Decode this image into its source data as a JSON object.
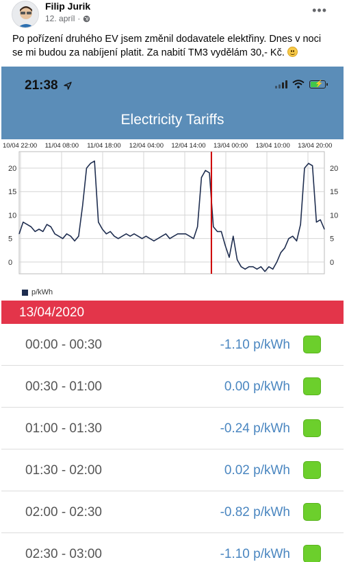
{
  "post": {
    "author": "Filip Jurik",
    "date": "12. apríl",
    "privacy_icon": "globe-icon",
    "more_icon": "ellipsis-icon",
    "text": "Po pořízení druhého EV jsem změnil dodavatele elektřiny. Dnes v noci se mi budou za nabíjení platit. Za nabití TM3 vydělám 30,- Kč.",
    "emoji": "smiley-emoji"
  },
  "status_bar": {
    "time": "21:38",
    "icons": [
      "location-arrow-icon",
      "signal-icon",
      "wifi-icon",
      "battery-charging-icon"
    ]
  },
  "app": {
    "title": "Electricity Tariffs",
    "accent_color": "#5b8db8",
    "date_bar_color": "#e3354a",
    "price_color": "#4a86c0",
    "indicator_color": "#6ccf2c"
  },
  "chart_data": {
    "type": "line",
    "title": "",
    "x_ticks": [
      "10/04 22:00",
      "11/04 08:00",
      "11/04 18:00",
      "12/04 04:00",
      "12/04 14:00",
      "13/04 00:00",
      "13/04 10:00",
      "13/04 20:00"
    ],
    "y_ticks": [
      20,
      15,
      10,
      5,
      0
    ],
    "ylim": [
      -2.5,
      23.5
    ],
    "grid": true,
    "legend": "bottom-left",
    "series": [
      {
        "name": "p/kWh",
        "color": "#1e2d4f",
        "x": [
          0,
          1,
          2,
          3,
          4,
          5,
          6,
          7,
          8,
          9,
          10,
          11,
          12,
          13,
          14,
          15,
          16,
          17,
          18,
          19,
          20,
          21,
          22,
          23,
          24,
          25,
          26,
          27,
          28,
          29,
          30,
          31,
          32,
          33,
          34,
          35,
          36,
          37,
          38,
          39,
          40,
          41,
          42,
          43,
          44,
          45,
          46,
          47,
          48,
          49,
          50,
          51,
          52,
          53,
          54,
          55,
          56,
          57,
          58,
          59,
          60,
          61,
          62,
          63,
          64,
          65,
          66,
          67,
          68,
          69,
          70,
          71,
          72,
          73,
          74,
          75,
          76,
          77
        ],
        "values": [
          6.0,
          8.5,
          8.0,
          7.5,
          6.5,
          7.0,
          6.5,
          8.0,
          7.5,
          6.0,
          5.5,
          5.0,
          6.0,
          5.5,
          4.5,
          5.5,
          12.0,
          20.0,
          21.0,
          21.5,
          8.5,
          7.0,
          6.0,
          6.5,
          5.5,
          5.0,
          5.5,
          6.0,
          5.5,
          6.0,
          5.5,
          5.0,
          5.5,
          5.0,
          4.5,
          5.0,
          5.5,
          6.0,
          5.0,
          5.5,
          6.0,
          6.0,
          6.0,
          5.5,
          5.0,
          7.5,
          18.0,
          19.5,
          19.0,
          7.5,
          6.5,
          6.5,
          3.5,
          1.0,
          5.5,
          0.5,
          -1.0,
          -1.5,
          -1.0,
          -1.0,
          -1.5,
          -1.0,
          -2.0,
          -1.0,
          -1.5,
          0.0,
          2.0,
          3.0,
          5.0,
          5.5,
          4.5,
          8.0,
          20.0,
          21.0,
          20.5,
          8.5,
          9.0,
          7.0
        ]
      }
    ],
    "now_marker_x": 48.5,
    "now_marker_color": "#cc0000"
  },
  "legend_label": "p/kWh",
  "date_header": "13/04/2020",
  "tariffs": [
    {
      "time": "00:00 - 00:30",
      "price": "-1.10 p/kWh"
    },
    {
      "time": "00:30 - 01:00",
      "price": "0.00 p/kWh"
    },
    {
      "time": "01:00 - 01:30",
      "price": "-0.24 p/kWh"
    },
    {
      "time": "01:30 - 02:00",
      "price": "0.02 p/kWh"
    },
    {
      "time": "02:00 - 02:30",
      "price": "-0.82 p/kWh"
    },
    {
      "time": "02:30 - 03:00",
      "price": "-1.10 p/kWh"
    }
  ]
}
